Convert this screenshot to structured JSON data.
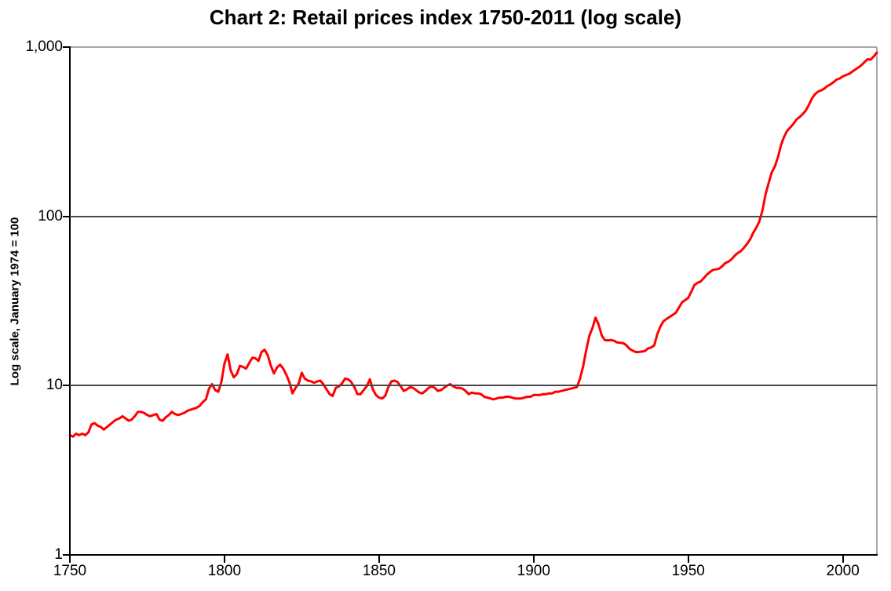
{
  "chart": {
    "title": "Chart 2: Retail prices index 1750-2011 (log scale)",
    "y_axis_title": "Log scale, January 1974 = 100"
  },
  "chart_data": {
    "type": "line",
    "title": "Chart 2: Retail prices index 1750-2011 (log scale)",
    "xlabel": "",
    "ylabel": "Log scale, January 1974 = 100",
    "x_range": [
      1750,
      2011
    ],
    "y_scale": "log10",
    "y_range": [
      1,
      1000
    ],
    "grid": "horizontal-major-only",
    "legend": "none",
    "line_color": "#ff0000",
    "line_width": 3,
    "axis_color": "#000000",
    "gridline_color": "#474747",
    "outer_border_color": "#a6a6a6",
    "y_ticks": [
      {
        "value": 1000,
        "label": "1,000"
      },
      {
        "value": 100,
        "label": "100"
      },
      {
        "value": 10,
        "label": "10"
      },
      {
        "value": 1,
        "label": "1"
      }
    ],
    "gridlines": [
      100,
      10
    ],
    "x_ticks": [
      {
        "value": 1750,
        "label": "1750"
      },
      {
        "value": 1800,
        "label": "1800"
      },
      {
        "value": 1850,
        "label": "1850"
      },
      {
        "value": 1900,
        "label": "1900"
      },
      {
        "value": 1950,
        "label": "1950"
      },
      {
        "value": 2000,
        "label": "2000"
      }
    ],
    "series": [
      {
        "name": "Retail prices index (January 1974 = 100)",
        "start_year": 1750,
        "end_year": 2011,
        "values": [
          5.1,
          5.0,
          5.2,
          5.1,
          5.2,
          5.1,
          5.3,
          5.9,
          6.0,
          5.8,
          5.7,
          5.5,
          5.7,
          5.9,
          6.1,
          6.3,
          6.4,
          6.6,
          6.4,
          6.2,
          6.3,
          6.6,
          7.0,
          7.0,
          6.9,
          6.7,
          6.6,
          6.7,
          6.8,
          6.3,
          6.2,
          6.5,
          6.7,
          7.0,
          6.8,
          6.7,
          6.8,
          6.9,
          7.1,
          7.2,
          7.3,
          7.4,
          7.6,
          8.0,
          8.3,
          9.6,
          10.2,
          9.4,
          9.2,
          10.5,
          13.5,
          15.3,
          12.3,
          11.2,
          11.7,
          13.1,
          12.9,
          12.6,
          13.6,
          14.6,
          14.5,
          14.0,
          15.8,
          16.3,
          15.1,
          13.1,
          11.8,
          12.8,
          13.3,
          12.6,
          11.6,
          10.5,
          9.0,
          9.7,
          10.3,
          11.9,
          11.0,
          10.7,
          10.6,
          10.4,
          10.6,
          10.7,
          10.2,
          9.5,
          8.9,
          8.7,
          9.7,
          9.9,
          10.3,
          11.0,
          10.9,
          10.5,
          9.8,
          8.9,
          8.9,
          9.4,
          9.9,
          10.9,
          9.5,
          8.8,
          8.5,
          8.4,
          8.7,
          9.8,
          10.6,
          10.7,
          10.5,
          9.9,
          9.3,
          9.5,
          9.8,
          9.7,
          9.4,
          9.1,
          9.0,
          9.3,
          9.7,
          9.9,
          9.7,
          9.3,
          9.4,
          9.7,
          10.0,
          10.2,
          9.9,
          9.7,
          9.7,
          9.6,
          9.3,
          8.9,
          9.1,
          9.0,
          9.0,
          8.9,
          8.6,
          8.5,
          8.4,
          8.3,
          8.4,
          8.5,
          8.5,
          8.6,
          8.6,
          8.5,
          8.4,
          8.4,
          8.4,
          8.5,
          8.6,
          8.6,
          8.8,
          8.8,
          8.8,
          8.9,
          8.9,
          9.0,
          9.0,
          9.2,
          9.2,
          9.3,
          9.4,
          9.5,
          9.6,
          9.7,
          9.8,
          11.0,
          13.0,
          16.2,
          19.7,
          21.8,
          25.2,
          23.0,
          19.8,
          18.6,
          18.5,
          18.6,
          18.4,
          18.0,
          17.9,
          17.8,
          17.3,
          16.5,
          16.1,
          15.8,
          15.8,
          15.9,
          16.0,
          16.6,
          16.8,
          17.3,
          20.2,
          22.4,
          24.0,
          24.8,
          25.5,
          26.2,
          27.0,
          28.9,
          31.1,
          32.0,
          33.0,
          36.0,
          39.3,
          40.5,
          41.2,
          43.1,
          45.2,
          46.9,
          48.3,
          48.6,
          49.1,
          50.8,
          53.0,
          54.0,
          55.8,
          58.5,
          60.8,
          62.3,
          65.2,
          68.7,
          73.1,
          79.9,
          85.6,
          93.5,
          108.5,
          134.8,
          157.1,
          182.0,
          197.1,
          223.5,
          263.7,
          295.0,
          320.4,
          335.1,
          351.8,
          373.2,
          385.9,
          402.0,
          421.7,
          454.5,
          497.5,
          526.7,
          546.4,
          555.1,
          568.5,
          588.2,
          602.4,
          621.3,
          642.6,
          652.5,
          671.8,
          683.7,
          695.1,
          715.2,
          736.5,
          757.3,
          781.5,
          815.0,
          847.5,
          843.0,
          881.9,
          927.8
        ]
      }
    ]
  }
}
